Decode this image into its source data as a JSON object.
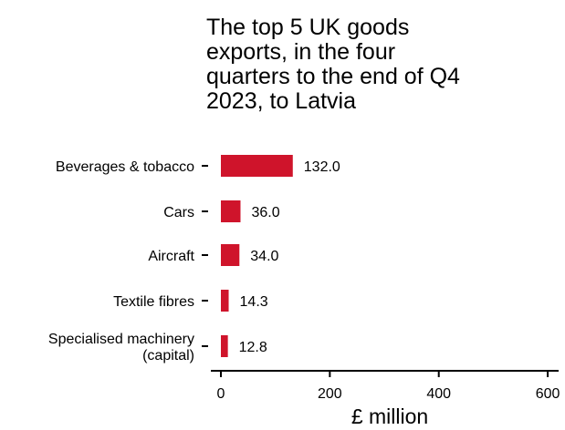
{
  "chart_data": {
    "type": "bar",
    "orientation": "horizontal",
    "title_lines": [
      "The top 5 UK goods",
      "exports, in the four",
      "quarters to the end of Q4",
      "2023, to Latvia"
    ],
    "categories": [
      [
        "Beverages & tobacco"
      ],
      [
        "Cars"
      ],
      [
        "Aircraft"
      ],
      [
        "Textile fibres"
      ],
      [
        "Specialised machinery",
        "(capital)"
      ]
    ],
    "values": [
      132.0,
      36.0,
      34.0,
      14.3,
      12.8
    ],
    "value_labels": [
      "132.0",
      "36.0",
      "34.0",
      "14.3",
      "12.8"
    ],
    "xlabel": "£ million",
    "ylabel": "",
    "xlim": [
      0,
      620
    ],
    "x_ticks": [
      0,
      200,
      400,
      600
    ],
    "x_tick_labels": [
      "0",
      "200",
      "400",
      "600"
    ],
    "grid": false,
    "legend": "none",
    "bar_color": "#cf142b"
  }
}
